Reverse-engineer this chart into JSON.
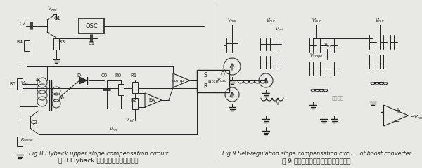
{
  "fig_width": 6.0,
  "fig_height": 2.4,
  "dpi": 100,
  "background_color": "#e8e8e4",
  "left_caption_en": "Fig.8 Flyback upper slope compensation circuit",
  "left_caption_zh": "图 8 Flyback 上斜坡补偿具体电路实现",
  "right_caption_en": "Fig.9 Self-regulation slope compensation circu... of boost converter",
  "right_caption_zh": "图 9 升压型转换器自调节斜坡补偿电路",
  "watermark": "电源联明"
}
